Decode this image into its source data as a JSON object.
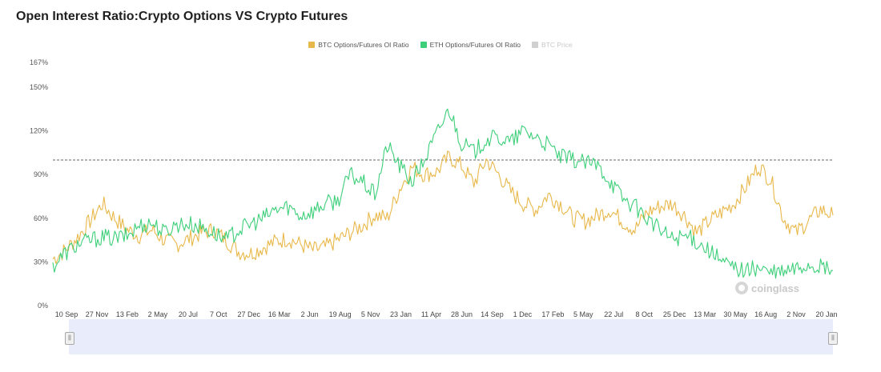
{
  "title": "Open Interest Ratio:Crypto Options VS Crypto Futures",
  "watermark": "coinglass",
  "legend": [
    {
      "label": "BTC Options/Futures OI Ratio",
      "color": "#e8b84a",
      "active": true
    },
    {
      "label": "ETH Options/Futures OI Ratio",
      "color": "#3ecf7a",
      "active": true
    },
    {
      "label": "BTC Price",
      "color": "#d0d0d0",
      "active": false
    }
  ],
  "chart_data": {
    "type": "line",
    "title": "Open Interest Ratio:Crypto Options VS Crypto Futures",
    "xlabel": "",
    "ylabel": "",
    "ylim": [
      0,
      167
    ],
    "yticks": [
      0,
      30,
      60,
      90,
      120,
      150,
      167
    ],
    "ytick_labels": [
      "0%",
      "30%",
      "60%",
      "90%",
      "120%",
      "150%",
      "167%"
    ],
    "x_tick_labels": [
      "10 Sep",
      "27 Nov",
      "13 Feb",
      "2 May",
      "20 Jul",
      "7 Oct",
      "27 Dec",
      "16 Mar",
      "2 Jun",
      "19 Aug",
      "5 Nov",
      "23 Jan",
      "11 Apr",
      "28 Jun",
      "14 Sep",
      "1 Dec",
      "17 Feb",
      "5 May",
      "22 Jul",
      "8 Oct",
      "25 Dec",
      "13 Mar",
      "30 May",
      "16 Aug",
      "2 Nov",
      "20 Jan"
    ],
    "reference_line": 100,
    "grid": false,
    "legend_position": "top-center",
    "series": [
      {
        "name": "BTC Options/Futures OI Ratio",
        "color": "#e8b84a",
        "values": [
          32,
          38,
          47,
          58,
          70,
          60,
          52,
          48,
          52,
          45,
          42,
          46,
          50,
          52,
          45,
          37,
          36,
          40,
          44,
          46,
          42,
          38,
          40,
          45,
          50,
          55,
          62,
          60,
          80,
          95,
          90,
          92,
          102,
          96,
          84,
          100,
          90,
          78,
          70,
          66,
          76,
          70,
          60,
          58,
          62,
          66,
          58,
          52,
          64,
          68,
          70,
          62,
          50,
          58,
          64,
          70,
          82,
          96,
          86,
          60,
          50,
          58,
          66,
          62
        ]
      },
      {
        "name": "ETH Options/Futures OI Ratio",
        "color": "#3ecf7a",
        "values": [
          27,
          36,
          42,
          45,
          47,
          46,
          48,
          55,
          57,
          50,
          56,
          56,
          54,
          50,
          45,
          52,
          56,
          60,
          66,
          68,
          62,
          65,
          70,
          72,
          90,
          85,
          76,
          110,
          96,
          85,
          100,
          118,
          135,
          112,
          105,
          114,
          115,
          112,
          120,
          116,
          110,
          102,
          100,
          98,
          96,
          86,
          74,
          68,
          60,
          52,
          46,
          48,
          44,
          38,
          30,
          26,
          24,
          26,
          22,
          23,
          25,
          28,
          26,
          24
        ]
      }
    ]
  }
}
